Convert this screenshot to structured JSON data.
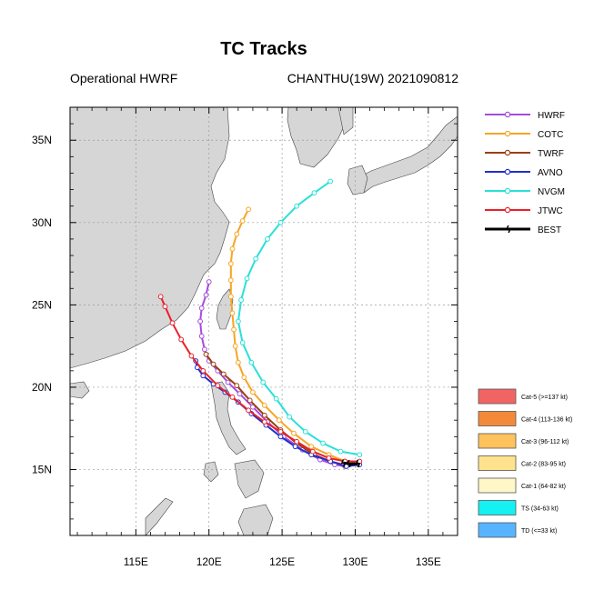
{
  "header": {
    "title": "TC Tracks",
    "left_subtitle": "Operational HWRF",
    "right_subtitle": "CHANTHU(19W) 2021090812"
  },
  "map": {
    "lon_range": [
      110.5,
      137.0
    ],
    "lat_range": [
      11.0,
      37.0
    ],
    "x_ticks": [
      115,
      120,
      125,
      130,
      135
    ],
    "x_tick_labels": [
      "115E",
      "120E",
      "125E",
      "130E",
      "135E"
    ],
    "y_ticks": [
      15,
      20,
      25,
      30,
      35
    ],
    "y_tick_labels": [
      "15N",
      "20N",
      "25N",
      "30N",
      "35N"
    ],
    "grid": true,
    "land_color": "#d6d6d6",
    "ocean_color": "#ffffff"
  },
  "chart_data": {
    "type": "line",
    "xlabel": "",
    "ylabel": "",
    "legend_position": "top-right",
    "series": [
      {
        "name": "HWRF",
        "color": "#a64cdf",
        "marker": "circle",
        "points": [
          [
            130.2,
            15.3
          ],
          [
            129.3,
            15.2
          ],
          [
            128.6,
            15.3
          ],
          [
            127.6,
            15.6
          ],
          [
            126.4,
            16.2
          ],
          [
            125.1,
            17.0
          ],
          [
            124.0,
            17.9
          ],
          [
            123.0,
            18.8
          ],
          [
            122.1,
            19.6
          ],
          [
            121.3,
            20.3
          ],
          [
            120.6,
            21.0
          ],
          [
            120.0,
            21.6
          ],
          [
            119.7,
            22.3
          ],
          [
            119.5,
            23.1
          ],
          [
            119.4,
            24.0
          ],
          [
            119.5,
            24.8
          ],
          [
            119.8,
            25.6
          ],
          [
            120.0,
            26.4
          ]
        ]
      },
      {
        "name": "COTC",
        "color": "#f5a623",
        "marker": "circle",
        "points": [
          [
            130.2,
            15.3
          ],
          [
            129.3,
            15.5
          ],
          [
            128.2,
            15.9
          ],
          [
            127.0,
            16.4
          ],
          [
            125.8,
            17.2
          ],
          [
            124.8,
            18.0
          ],
          [
            123.8,
            18.9
          ],
          [
            123.0,
            19.7
          ],
          [
            122.4,
            20.6
          ],
          [
            122.0,
            21.5
          ],
          [
            121.8,
            22.5
          ],
          [
            121.7,
            23.5
          ],
          [
            121.6,
            24.5
          ],
          [
            121.5,
            25.5
          ],
          [
            121.5,
            26.5
          ],
          [
            121.5,
            27.5
          ],
          [
            121.6,
            28.4
          ],
          [
            121.9,
            29.3
          ],
          [
            122.3,
            30.1
          ],
          [
            122.7,
            30.8
          ]
        ]
      },
      {
        "name": "TWRF",
        "color": "#9a3f14",
        "marker": "circle",
        "points": [
          [
            130.1,
            15.4
          ],
          [
            129.2,
            15.3
          ],
          [
            128.3,
            15.5
          ],
          [
            127.2,
            15.9
          ],
          [
            126.0,
            16.6
          ],
          [
            124.9,
            17.4
          ],
          [
            123.8,
            18.3
          ],
          [
            122.8,
            19.2
          ],
          [
            121.9,
            20.1
          ],
          [
            121.0,
            20.8
          ],
          [
            120.3,
            21.4
          ],
          [
            119.8,
            22.0
          ]
        ]
      },
      {
        "name": "AVNO",
        "color": "#1f2fcf",
        "marker": "circle",
        "points": [
          [
            130.3,
            15.3
          ],
          [
            129.4,
            15.2
          ],
          [
            128.3,
            15.5
          ],
          [
            127.0,
            15.9
          ],
          [
            125.9,
            16.4
          ],
          [
            124.9,
            17.0
          ],
          [
            123.9,
            17.7
          ],
          [
            122.9,
            18.4
          ],
          [
            122.0,
            19.1
          ],
          [
            121.1,
            19.7
          ],
          [
            120.3,
            20.2
          ],
          [
            119.6,
            20.7
          ],
          [
            119.2,
            21.2
          ],
          [
            119.1,
            21.6
          ]
        ]
      },
      {
        "name": "NVGM",
        "color": "#2be0d8",
        "marker": "circle",
        "points": [
          [
            130.3,
            15.9
          ],
          [
            129.0,
            16.1
          ],
          [
            127.8,
            16.6
          ],
          [
            126.6,
            17.3
          ],
          [
            125.5,
            18.2
          ],
          [
            124.6,
            19.3
          ],
          [
            123.7,
            20.3
          ],
          [
            122.9,
            21.5
          ],
          [
            122.3,
            22.7
          ],
          [
            122.0,
            24.0
          ],
          [
            122.2,
            25.3
          ],
          [
            122.6,
            26.6
          ],
          [
            123.2,
            27.8
          ],
          [
            124.0,
            29.0
          ],
          [
            124.9,
            30.0
          ],
          [
            126.0,
            31.0
          ],
          [
            127.2,
            31.8
          ],
          [
            128.3,
            32.5
          ]
        ]
      },
      {
        "name": "JTWC",
        "color": "#e8212a",
        "marker": "circle",
        "points": [
          [
            130.3,
            15.5
          ],
          [
            129.3,
            15.5
          ],
          [
            128.2,
            15.7
          ],
          [
            127.1,
            16.1
          ],
          [
            126.0,
            16.7
          ],
          [
            124.9,
            17.3
          ],
          [
            123.8,
            17.9
          ],
          [
            122.7,
            18.6
          ],
          [
            121.6,
            19.4
          ],
          [
            120.6,
            20.1
          ],
          [
            119.6,
            21.0
          ],
          [
            118.8,
            21.9
          ],
          [
            118.1,
            22.9
          ],
          [
            117.5,
            23.9
          ],
          [
            117.0,
            24.9
          ],
          [
            116.7,
            25.5
          ]
        ]
      },
      {
        "name": "BEST",
        "color": "#000000",
        "marker": "tc-symbol",
        "points": [
          [
            130.2,
            15.35
          ],
          [
            129.6,
            15.35
          ],
          [
            129.2,
            15.4
          ]
        ]
      }
    ]
  },
  "intensity_legend": [
    {
      "label": "Cat-5 (>=137 kt)",
      "color": "#f26464"
    },
    {
      "label": "Cat-4 (113-136 kt)",
      "color": "#f28a3a"
    },
    {
      "label": "Cat-3 (96-112 kt)",
      "color": "#ffc25c"
    },
    {
      "label": "Cat-2 (83-95 kt)",
      "color": "#ffe38c"
    },
    {
      "label": "Cat-1 (64-82 kt)",
      "color": "#fff7c8"
    },
    {
      "label": "TS (34-63 kt)",
      "color": "#15f0f0"
    },
    {
      "label": "TD (<=33 kt)",
      "color": "#58b4ff"
    }
  ]
}
